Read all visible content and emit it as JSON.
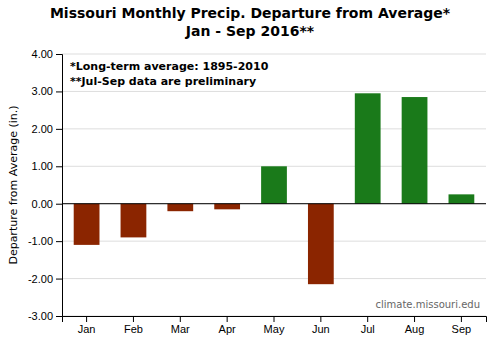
{
  "chart_data": {
    "type": "bar",
    "title": "Missouri Monthly Precip. Departure from Average*",
    "subtitle": "Jan - Sep 2016**",
    "ylabel": "Departure from Average (in.)",
    "categories": [
      "Jan",
      "Feb",
      "Mar",
      "Apr",
      "May",
      "Jun",
      "Jul",
      "Aug",
      "Sep"
    ],
    "values": [
      -1.1,
      -0.9,
      -0.2,
      -0.15,
      1.0,
      -2.15,
      2.95,
      2.85,
      0.25
    ],
    "colors": [
      "#8B2500",
      "#8B2500",
      "#8B2500",
      "#8B2500",
      "#1a7a1a",
      "#8B2500",
      "#1a7a1a",
      "#1a7a1a",
      "#1a7a1a"
    ],
    "ylim": [
      -3.0,
      4.0
    ],
    "yticks": [
      {
        "value": -3.0,
        "label": "-3.00"
      },
      {
        "value": -2.0,
        "label": "-2.00"
      },
      {
        "value": -1.0,
        "label": "-1.00"
      },
      {
        "value": 0.0,
        "label": "0.00"
      },
      {
        "value": 1.0,
        "label": "1.00"
      },
      {
        "value": 2.0,
        "label": "2.00"
      },
      {
        "value": 3.0,
        "label": "3.00"
      },
      {
        "value": 4.0,
        "label": "4.00"
      }
    ],
    "grid": true,
    "annotations": [
      "*Long-term average: 1895-2010",
      "**Jul-Sep data are preliminary",
      "climate.missouri.edu"
    ]
  }
}
